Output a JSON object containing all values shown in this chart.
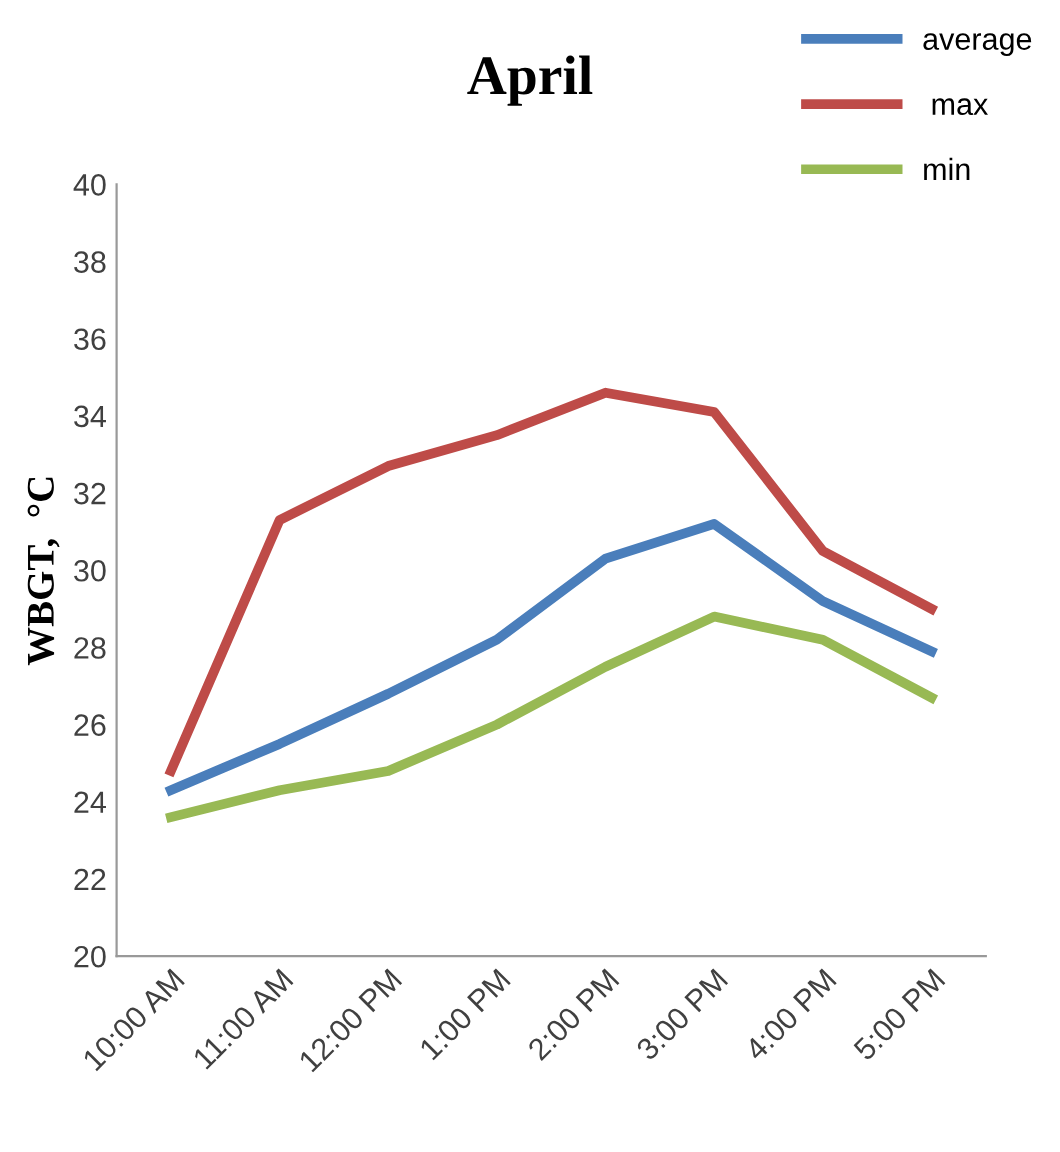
{
  "chart_data": {
    "type": "line",
    "title": "April",
    "ylabel": "WBGT,  °C",
    "categories": [
      "10:00 AM",
      "11:00 AM",
      "12:00 PM",
      "1:00 PM",
      "2:00 PM",
      "3:00 PM",
      "4:00 PM",
      "5:00 PM"
    ],
    "series": [
      {
        "name": "average",
        "color": "#4a7ebb",
        "values": [
          24.3,
          25.5,
          26.8,
          28.2,
          30.3,
          31.2,
          29.2,
          27.9
        ]
      },
      {
        "name": " max",
        "color": "#be4b48",
        "values": [
          24.8,
          31.3,
          32.7,
          33.5,
          34.6,
          34.1,
          30.5,
          29.0
        ]
      },
      {
        "name": "min",
        "color": "#98b954",
        "values": [
          23.6,
          24.3,
          24.8,
          26.0,
          27.5,
          28.8,
          28.2,
          26.7
        ]
      }
    ],
    "ylim": [
      20,
      40
    ],
    "yticks": [
      20,
      22,
      24,
      26,
      28,
      30,
      32,
      34,
      36,
      38,
      40
    ],
    "grid": false,
    "legend": "top right",
    "marker": "none",
    "line_style": "solid"
  }
}
